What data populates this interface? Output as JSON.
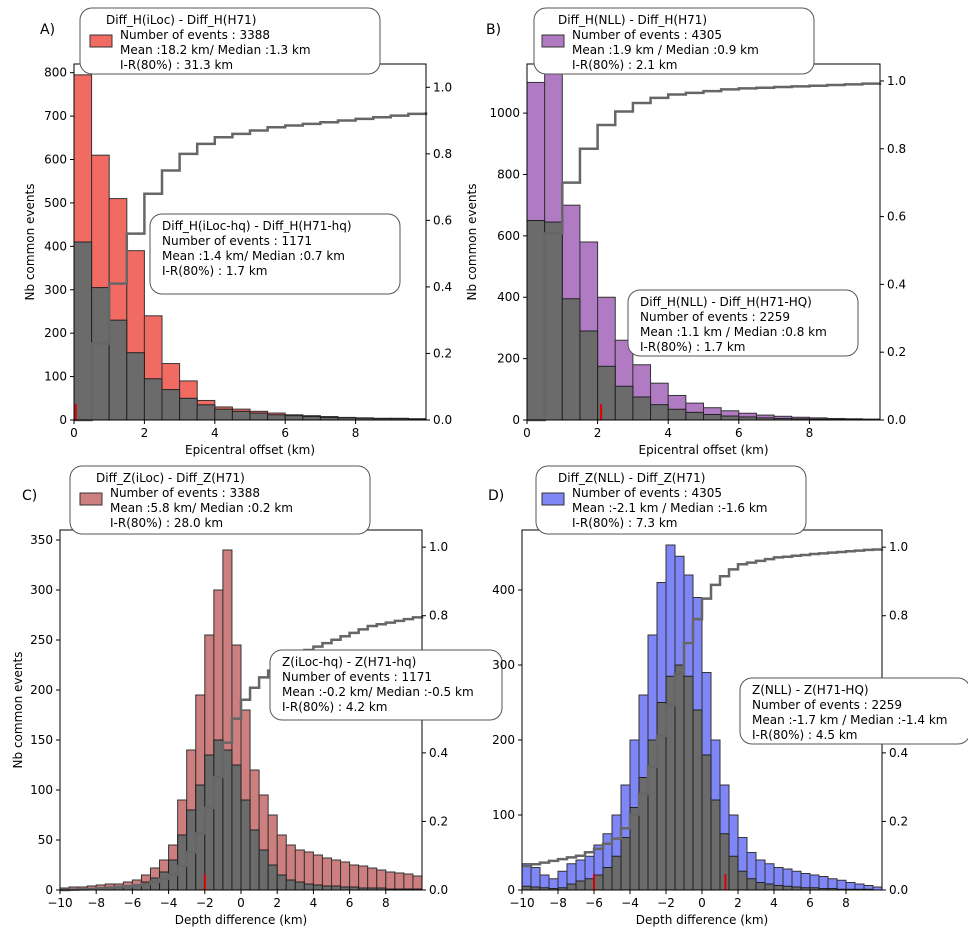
{
  "chart_data": [
    {
      "panel_letter": "A)",
      "type": "bar",
      "xlabel": "Epicentral offset (km)",
      "ylabel": "Nb common events",
      "xlim": [
        0,
        10
      ],
      "ylim": [
        0,
        820
      ],
      "right_ylim": [
        0,
        1.07
      ],
      "bin_width": 0.5,
      "x_ticks": [
        "0",
        "2",
        "4",
        "6",
        "8"
      ],
      "x_tick_values": [
        0,
        2,
        4,
        6,
        8
      ],
      "y_ticks": [
        "0",
        "100",
        "200",
        "300",
        "400",
        "500",
        "600",
        "700",
        "800"
      ],
      "y_tick_values": [
        0,
        100,
        200,
        300,
        400,
        500,
        600,
        700,
        800
      ],
      "right_ticks": [
        "0.0",
        "0.2",
        "0.4",
        "0.6",
        "0.8",
        "1.0"
      ],
      "right_tick_values": [
        0,
        0.2,
        0.4,
        0.6,
        0.8,
        1.0
      ],
      "series": [
        {
          "values": [
            795,
            610,
            510,
            390,
            240,
            130,
            90,
            45,
            30,
            25,
            20,
            16,
            12,
            10,
            8,
            6,
            5,
            4,
            4,
            3
          ],
          "color": "#f26b63",
          "edge": "#333333"
        },
        {
          "values": [
            410,
            305,
            230,
            155,
            95,
            70,
            50,
            35,
            25,
            20,
            16,
            12,
            10,
            8,
            6,
            5,
            4,
            3,
            3,
            2
          ],
          "color": "#6b6b6b",
          "edge": "#222222"
        }
      ],
      "cdf": {
        "x": [
          0,
          0.5,
          1.0,
          1.5,
          2.0,
          2.5,
          3.0,
          3.5,
          4.0,
          4.5,
          5.0,
          5.5,
          6.0,
          6.5,
          7.0,
          7.5,
          8.0,
          8.5,
          9.0,
          9.5,
          10.0
        ],
        "y": [
          0,
          0.23,
          0.41,
          0.56,
          0.68,
          0.75,
          0.8,
          0.83,
          0.85,
          0.86,
          0.87,
          0.88,
          0.885,
          0.89,
          0.895,
          0.9,
          0.905,
          0.91,
          0.915,
          0.92,
          0.925
        ],
        "color": "#666666"
      },
      "markers": [
        {
          "x": 0.05,
          "color": "#dd0000"
        }
      ],
      "annotations": [
        {
          "lines": [
            "Diff_H(iLoc) - Diff_H(H71)",
            "Number of events : 3388",
            "Mean :18.2 km/ Median :1.3 km",
            "I-R(80%) : 31.3 km"
          ],
          "swatch": "#f26b63"
        },
        {
          "lines": [
            "Diff_H(iLoc-hq) - Diff_H(H71-hq)",
            "Number of events : 1171",
            "Mean :1.4 km/ Median :0.7 km",
            "I-R(80%) : 1.7 km"
          ]
        }
      ]
    },
    {
      "panel_letter": "B)",
      "type": "bar",
      "xlabel": "Epicentral offset (km)",
      "ylabel": "Nb common events",
      "xlim": [
        0,
        10
      ],
      "ylim": [
        0,
        1160
      ],
      "right_ylim": [
        0,
        1.05
      ],
      "bin_width": 0.5,
      "x_ticks": [
        "0",
        "2",
        "4",
        "6",
        "8"
      ],
      "x_tick_values": [
        0,
        2,
        4,
        6,
        8
      ],
      "y_ticks": [
        "0",
        "200",
        "400",
        "600",
        "800",
        "1000"
      ],
      "y_tick_values": [
        0,
        200,
        400,
        600,
        800,
        1000
      ],
      "right_ticks": [
        "0.0",
        "0.2",
        "0.4",
        "0.6",
        "0.8",
        "1.0"
      ],
      "right_tick_values": [
        0,
        0.2,
        0.4,
        0.6,
        0.8,
        1.0
      ],
      "series": [
        {
          "values": [
            1100,
            1130,
            700,
            580,
            400,
            260,
            180,
            120,
            80,
            55,
            40,
            30,
            22,
            16,
            12,
            9,
            7,
            5,
            4,
            3
          ],
          "color": "#b07bc2",
          "edge": "#333333"
        },
        {
          "values": [
            650,
            645,
            395,
            290,
            175,
            110,
            75,
            50,
            35,
            25,
            18,
            13,
            10,
            7,
            5,
            4,
            3,
            2,
            2,
            1
          ],
          "color": "#6b6b6b",
          "edge": "#222222"
        }
      ],
      "cdf": {
        "x": [
          0,
          0.5,
          1.0,
          1.5,
          2.0,
          2.5,
          3.0,
          3.5,
          4.0,
          4.5,
          5.0,
          5.5,
          6.0,
          6.5,
          7.0,
          7.5,
          8.0,
          8.5,
          9.0,
          9.5,
          10.0
        ],
        "y": [
          0,
          0.55,
          0.7,
          0.8,
          0.87,
          0.91,
          0.935,
          0.95,
          0.96,
          0.965,
          0.97,
          0.975,
          0.978,
          0.98,
          0.982,
          0.984,
          0.986,
          0.988,
          0.99,
          0.992,
          0.995
        ],
        "color": "#666666"
      },
      "markers": [
        {
          "x": 2.1,
          "color": "#dd0000"
        }
      ],
      "annotations": [
        {
          "lines": [
            "Diff_H(NLL) - Diff_H(H71)",
            "Number of events : 4305",
            "Mean :1.9 km / Median :0.9 km",
            "I-R(80%) : 2.1 km"
          ],
          "swatch": "#b07bc2"
        },
        {
          "lines": [
            "Diff_H(NLL) - Diff_H(H71-HQ)",
            "Number of events : 2259",
            "Mean :1.1 km / Median :0.8 km",
            "I-R(80%)  : 1.7 km"
          ]
        }
      ]
    },
    {
      "panel_letter": "C)",
      "type": "bar",
      "xlabel": "Depth difference (km)",
      "ylabel": "Nb common events",
      "xlim": [
        -10,
        10
      ],
      "ylim": [
        0,
        360
      ],
      "right_ylim": [
        0,
        1.05
      ],
      "bin_width": 0.5,
      "x_ticks": [
        "−10",
        "−8",
        "−6",
        "−4",
        "−2",
        "0",
        "2",
        "4",
        "6",
        "8"
      ],
      "x_tick_values": [
        -10,
        -8,
        -6,
        -4,
        -2,
        0,
        2,
        4,
        6,
        8
      ],
      "y_ticks": [
        "0",
        "50",
        "100",
        "150",
        "200",
        "250",
        "300",
        "350"
      ],
      "y_tick_values": [
        0,
        50,
        100,
        150,
        200,
        250,
        300,
        350
      ],
      "right_ticks": [
        "0.0",
        "0.2",
        "0.4",
        "0.6",
        "0.8",
        "1.0"
      ],
      "right_tick_values": [
        0,
        0.2,
        0.4,
        0.6,
        0.8,
        1.0
      ],
      "series": [
        {
          "values": [
            2,
            3,
            3,
            4,
            5,
            6,
            6,
            8,
            10,
            15,
            22,
            30,
            45,
            90,
            140,
            195,
            255,
            300,
            340,
            245,
            180,
            120,
            95,
            75,
            55,
            45,
            40,
            38,
            35,
            32,
            30,
            28,
            25,
            24,
            22,
            20,
            18,
            17,
            16,
            14
          ],
          "color": "#cd7f7f",
          "edge": "#333333"
        },
        {
          "values": [
            0,
            0,
            0,
            1,
            2,
            2,
            3,
            4,
            5,
            8,
            12,
            18,
            30,
            55,
            80,
            105,
            135,
            150,
            140,
            125,
            90,
            60,
            40,
            25,
            15,
            10,
            8,
            6,
            5,
            4,
            4,
            3,
            3,
            2,
            2,
            2,
            1,
            1,
            1,
            1
          ],
          "color": "#6b6b6b",
          "edge": "#222222"
        }
      ],
      "cdf": {
        "x": [
          -10,
          -9.5,
          -9,
          -8.5,
          -8,
          -7.5,
          -7,
          -6.5,
          -6,
          -5.5,
          -5,
          -4.5,
          -4,
          -3.5,
          -3,
          -2.5,
          -2,
          -1.5,
          -1,
          -0.5,
          0,
          0.5,
          1.0,
          1.5,
          2.0,
          2.5,
          3.0,
          3.5,
          4.0,
          4.5,
          5.0,
          5.5,
          6.0,
          6.5,
          7.0,
          7.5,
          8.0,
          8.5,
          9.0,
          9.5,
          10.0
        ],
        "y": [
          0,
          0.001,
          0.002,
          0.003,
          0.005,
          0.007,
          0.009,
          0.011,
          0.014,
          0.018,
          0.024,
          0.032,
          0.045,
          0.07,
          0.11,
          0.165,
          0.24,
          0.33,
          0.43,
          0.5,
          0.555,
          0.59,
          0.62,
          0.64,
          0.66,
          0.675,
          0.69,
          0.7,
          0.71,
          0.72,
          0.73,
          0.74,
          0.75,
          0.76,
          0.77,
          0.775,
          0.78,
          0.785,
          0.79,
          0.795,
          0.8
        ],
        "color": "#666666"
      },
      "markers": [
        {
          "x": -2.0,
          "color": "#dd0000"
        }
      ],
      "annotations": [
        {
          "lines": [
            "Diff_Z(iLoc) - Diff_Z(H71)",
            "Number of events : 3388",
            "Mean :5.8 km/ Median :0.2 km",
            "I-R(80%) : 28.0 km"
          ],
          "swatch": "#cd7f7f"
        },
        {
          "lines": [
            "Z(iLoc-hq) - Z(H71-hq)",
            "Number of events : 1171",
            "Mean :-0.2 km/ Median :-0.5 km",
            "I-R(80%) : 4.2 km"
          ]
        }
      ]
    },
    {
      "panel_letter": "D)",
      "type": "bar",
      "xlabel": "Depth difference (km)",
      "ylabel": "",
      "xlim": [
        -10,
        10
      ],
      "ylim": [
        0,
        480
      ],
      "right_ylim": [
        0,
        1.05
      ],
      "bin_width": 0.5,
      "x_ticks": [
        "−10",
        "−8",
        "−6",
        "−4",
        "−2",
        "0",
        "2",
        "4",
        "6",
        "8"
      ],
      "x_tick_values": [
        -10,
        -8,
        -6,
        -4,
        -2,
        0,
        2,
        4,
        6,
        8
      ],
      "y_ticks": [
        "0",
        "100",
        "200",
        "300",
        "400"
      ],
      "y_tick_values": [
        0,
        100,
        200,
        300,
        400
      ],
      "right_ticks": [
        "0.0",
        "0.2",
        "0.4",
        "0.6",
        "0.8",
        "1.0"
      ],
      "right_tick_values": [
        0,
        0.2,
        0.4,
        0.6,
        0.8,
        1.0
      ],
      "series": [
        {
          "values": [
            35,
            30,
            20,
            15,
            25,
            35,
            40,
            45,
            60,
            75,
            100,
            140,
            200,
            260,
            340,
            410,
            460,
            445,
            420,
            390,
            290,
            200,
            140,
            100,
            70,
            50,
            40,
            35,
            30,
            28,
            25,
            22,
            20,
            18,
            15,
            13,
            10,
            8,
            6,
            4
          ],
          "color": "#7f86f5",
          "edge": "#333333"
        },
        {
          "values": [
            5,
            4,
            3,
            2,
            3,
            8,
            12,
            15,
            20,
            30,
            45,
            70,
            110,
            150,
            200,
            250,
            285,
            300,
            285,
            240,
            180,
            120,
            75,
            45,
            25,
            15,
            10,
            8,
            6,
            5,
            4,
            3,
            3,
            2,
            2,
            1,
            1,
            1,
            1,
            0
          ],
          "color": "#6b6b6b",
          "edge": "#222222"
        }
      ],
      "cdf": {
        "x": [
          -10,
          -9.5,
          -9,
          -8.5,
          -8,
          -7.5,
          -7,
          -6.5,
          -6,
          -5.5,
          -5,
          -4.5,
          -4,
          -3.5,
          -3,
          -2.5,
          -2,
          -1.5,
          -1,
          -0.5,
          0,
          0.5,
          1.0,
          1.5,
          2.0,
          2.5,
          3.0,
          3.5,
          4.0,
          4.5,
          5.0,
          5.5,
          6.0,
          6.5,
          7.0,
          7.5,
          8.0,
          8.5,
          9.0,
          9.5,
          10.0
        ],
        "y": [
          0.07,
          0.075,
          0.08,
          0.085,
          0.09,
          0.095,
          0.1,
          0.11,
          0.12,
          0.135,
          0.15,
          0.18,
          0.22,
          0.28,
          0.36,
          0.45,
          0.54,
          0.63,
          0.72,
          0.79,
          0.85,
          0.89,
          0.915,
          0.935,
          0.95,
          0.955,
          0.96,
          0.965,
          0.97,
          0.972,
          0.975,
          0.977,
          0.98,
          0.982,
          0.984,
          0.986,
          0.988,
          0.99,
          0.992,
          0.993,
          0.995
        ],
        "color": "#666666"
      },
      "markers": [
        {
          "x": -6.0,
          "color": "#dd0000"
        },
        {
          "x": 1.3,
          "color": "#dd0000"
        }
      ],
      "annotations": [
        {
          "lines": [
            "Diff_Z(NLL) - Diff_Z(H71)",
            "Number of events : 4305",
            "Mean :-2.1 km / Median :-1.6 km",
            "I-R(80%)  : 7.3 km"
          ],
          "swatch": "#7f86f5"
        },
        {
          "lines": [
            "Z(NLL) - Z(H71-HQ)",
            "Number of events : 2259",
            "Mean :-1.7 km / Median :-1.4 km",
            "I-R(80%)  : 4.5 km"
          ]
        }
      ]
    }
  ]
}
